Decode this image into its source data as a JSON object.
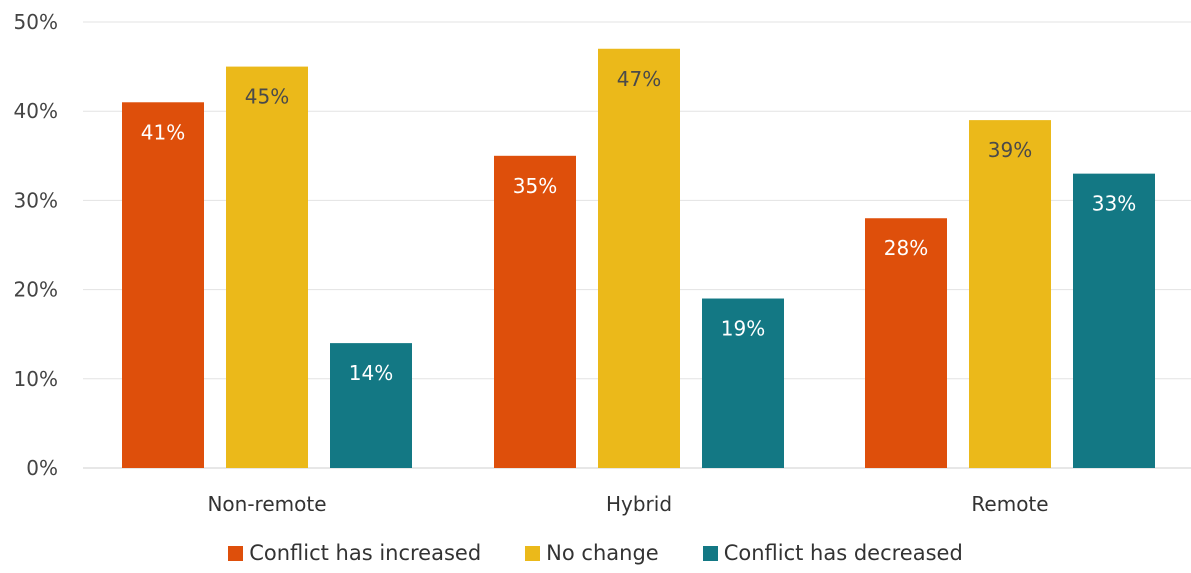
{
  "chart_data": {
    "type": "bar",
    "categories": [
      "Non-remote",
      "Hybrid",
      "Remote"
    ],
    "series": [
      {
        "name": "Conflict has increased",
        "values": [
          41,
          35,
          28
        ],
        "labels": [
          "41%",
          "35%",
          "28%"
        ],
        "color": "#DE4F0B"
      },
      {
        "name": "No change",
        "values": [
          45,
          47,
          39
        ],
        "labels": [
          "45%",
          "47%",
          "39%"
        ],
        "color": "#EBB91A"
      },
      {
        "name": "Conflict has decreased",
        "values": [
          14,
          19,
          33
        ],
        "labels": [
          "14%",
          "19%",
          "33%"
        ],
        "color": "#137884"
      }
    ],
    "yticks": [
      "0%",
      "10%",
      "20%",
      "30%",
      "40%",
      "50%"
    ],
    "ylim": [
      0,
      50
    ],
    "grid": true,
    "legend_position": "bottom-center",
    "title": "",
    "xlabel": "",
    "ylabel": ""
  }
}
